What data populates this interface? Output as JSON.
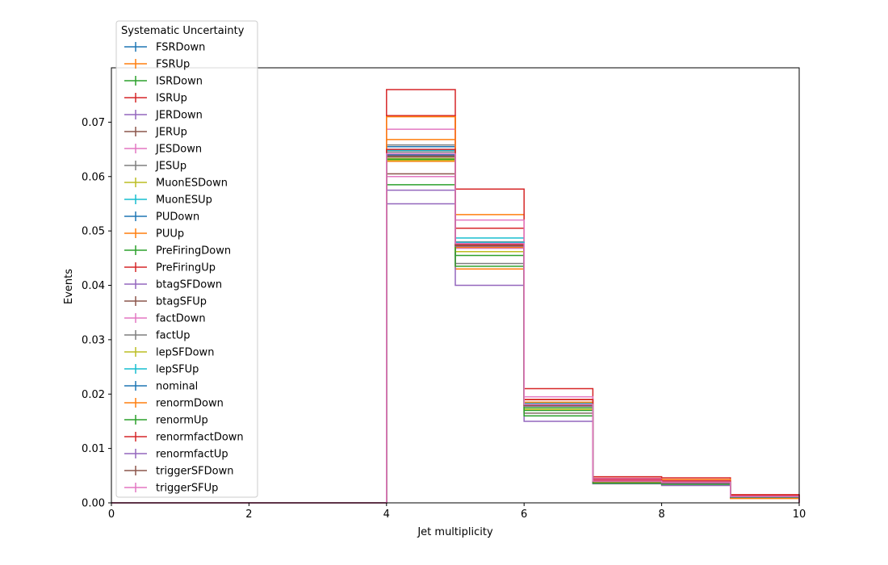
{
  "chart_data": {
    "type": "step-histogram",
    "title": "",
    "xlabel": "Jet multiplicity",
    "ylabel": "Events",
    "xlim": [
      0,
      10
    ],
    "ylim": [
      0,
      0.08
    ],
    "xticks": [
      "0",
      "2",
      "4",
      "6",
      "8",
      "10"
    ],
    "yticks": [
      "0.00",
      "0.01",
      "0.02",
      "0.03",
      "0.04",
      "0.05",
      "0.06",
      "0.07"
    ],
    "bin_edges": [
      0,
      1,
      2,
      3,
      4,
      5,
      6,
      7,
      8,
      9,
      10
    ],
    "grid": false,
    "legend": {
      "title": "Systematic Uncertainty",
      "placement": "upper-left"
    },
    "series": [
      {
        "name": "FSRDown",
        "color": "#1f77b4",
        "values": [
          0,
          0,
          0,
          0,
          0.0655,
          0.0475,
          0.018,
          0.004,
          0.0038,
          0.0012
        ]
      },
      {
        "name": "FSRUp",
        "color": "#ff7f0e",
        "values": [
          0,
          0,
          0,
          0,
          0.0668,
          0.053,
          0.019,
          0.0043,
          0.004,
          0.0012
        ]
      },
      {
        "name": "ISRDown",
        "color": "#2ca02c",
        "values": [
          0,
          0,
          0,
          0,
          0.063,
          0.0475,
          0.0175,
          0.0038,
          0.0036,
          0.0011
        ]
      },
      {
        "name": "ISRUp",
        "color": "#d62728",
        "values": [
          0,
          0,
          0,
          0,
          0.0712,
          0.0505,
          0.019,
          0.0045,
          0.0042,
          0.0014
        ]
      },
      {
        "name": "JERDown",
        "color": "#9467bd",
        "values": [
          0,
          0,
          0,
          0,
          0.064,
          0.0478,
          0.0182,
          0.004,
          0.0037,
          0.0012
        ]
      },
      {
        "name": "JERUp",
        "color": "#8c564b",
        "values": [
          0,
          0,
          0,
          0,
          0.0638,
          0.0476,
          0.0181,
          0.004,
          0.0037,
          0.0012
        ]
      },
      {
        "name": "JESDown",
        "color": "#e377c2",
        "values": [
          0,
          0,
          0,
          0,
          0.06,
          0.0468,
          0.0178,
          0.0039,
          0.0036,
          0.0011
        ]
      },
      {
        "name": "JESUp",
        "color": "#7f7f7f",
        "values": [
          0,
          0,
          0,
          0,
          0.0658,
          0.048,
          0.0184,
          0.0041,
          0.0038,
          0.0012
        ]
      },
      {
        "name": "MuonESDown",
        "color": "#bcbd22",
        "values": [
          0,
          0,
          0,
          0,
          0.0633,
          0.0472,
          0.0178,
          0.0039,
          0.0037,
          0.0012
        ]
      },
      {
        "name": "MuonESUp",
        "color": "#17becf",
        "values": [
          0,
          0,
          0,
          0,
          0.0645,
          0.0487,
          0.0183,
          0.004,
          0.0038,
          0.0012
        ]
      },
      {
        "name": "PUDown",
        "color": "#1f77b4",
        "values": [
          0,
          0,
          0,
          0,
          0.065,
          0.0478,
          0.0181,
          0.004,
          0.0038,
          0.0012
        ]
      },
      {
        "name": "PUUp",
        "color": "#ff7f0e",
        "values": [
          0,
          0,
          0,
          0,
          0.0628,
          0.043,
          0.0165,
          0.0039,
          0.0037,
          0.0008
        ]
      },
      {
        "name": "PreFiringDown",
        "color": "#2ca02c",
        "values": [
          0,
          0,
          0,
          0,
          0.0585,
          0.0455,
          0.017,
          0.0038,
          0.0036,
          0.0011
        ]
      },
      {
        "name": "PreFiringUp",
        "color": "#d62728",
        "values": [
          0,
          0,
          0,
          0,
          0.076,
          0.0577,
          0.021,
          0.0048,
          0.0046,
          0.0015
        ]
      },
      {
        "name": "btagSFDown",
        "color": "#9467bd",
        "values": [
          0,
          0,
          0,
          0,
          0.055,
          0.04,
          0.015,
          0.0035,
          0.0032,
          0.001
        ]
      },
      {
        "name": "btagSFUp",
        "color": "#8c564b",
        "values": [
          0,
          0,
          0,
          0,
          0.0605,
          0.047,
          0.0185,
          0.0041,
          0.0039,
          0.0012
        ]
      },
      {
        "name": "factDown",
        "color": "#e377c2",
        "values": [
          0,
          0,
          0,
          0,
          0.0687,
          0.052,
          0.0195,
          0.0044,
          0.0041,
          0.0013
        ]
      },
      {
        "name": "factUp",
        "color": "#7f7f7f",
        "values": [
          0,
          0,
          0,
          0,
          0.0645,
          0.044,
          0.0165,
          0.0037,
          0.0035,
          0.0011
        ]
      },
      {
        "name": "lepSFDown",
        "color": "#bcbd22",
        "values": [
          0,
          0,
          0,
          0,
          0.063,
          0.0462,
          0.0172,
          0.0038,
          0.0036,
          0.0011
        ]
      },
      {
        "name": "lepSFUp",
        "color": "#17becf",
        "values": [
          0,
          0,
          0,
          0,
          0.0648,
          0.0479,
          0.0182,
          0.004,
          0.0038,
          0.0012
        ]
      },
      {
        "name": "nominal",
        "color": "#1f77b4",
        "values": [
          0,
          0,
          0,
          0,
          0.064,
          0.0475,
          0.018,
          0.004,
          0.0037,
          0.0012
        ]
      },
      {
        "name": "renormDown",
        "color": "#ff7f0e",
        "values": [
          0,
          0,
          0,
          0,
          0.071,
          0.047,
          0.0185,
          0.0041,
          0.0043,
          0.0013
        ]
      },
      {
        "name": "renormUp",
        "color": "#2ca02c",
        "values": [
          0,
          0,
          0,
          0,
          0.0632,
          0.0435,
          0.016,
          0.0036,
          0.0034,
          0.001
        ]
      },
      {
        "name": "renormfactDown",
        "color": "#d62728",
        "values": [
          0,
          0,
          0,
          0,
          0.065,
          0.0475,
          0.019,
          0.0042,
          0.004,
          0.0013
        ]
      },
      {
        "name": "renormfactUp",
        "color": "#9467bd",
        "values": [
          0,
          0,
          0,
          0,
          0.0575,
          0.0472,
          0.0178,
          0.0039,
          0.0036,
          0.0011
        ]
      },
      {
        "name": "triggerSFDown",
        "color": "#8c564b",
        "values": [
          0,
          0,
          0,
          0,
          0.0636,
          0.0473,
          0.0179,
          0.0039,
          0.0037,
          0.0012
        ]
      },
      {
        "name": "triggerSFUp",
        "color": "#e377c2",
        "values": [
          0,
          0,
          0,
          0,
          0.0642,
          0.0477,
          0.0181,
          0.004,
          0.0038,
          0.0012
        ]
      }
    ]
  }
}
